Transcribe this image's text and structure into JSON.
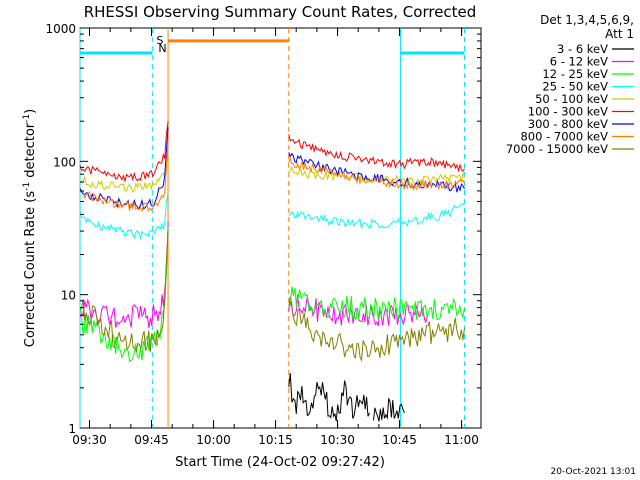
{
  "chart_data": {
    "type": "line",
    "title": "RHESSI Observing Summary Count Rates, Corrected",
    "xlabel": "Start Time (24-Oct-02 09:27:42)",
    "ylabel_main": "Corrected Count Rate (s",
    "ylabel_sup1": "-1",
    "ylabel_mid": " detector",
    "ylabel_sup2": "-1",
    "ylabel_end": ")",
    "x_start": "09:27:42",
    "xlim_minutes": [
      0,
      97
    ],
    "ylim": [
      1,
      1000
    ],
    "yscale": "log",
    "x_ticks": [
      "09:30",
      "09:45",
      "10:00",
      "10:15",
      "10:30",
      "10:45",
      "11:00"
    ],
    "y_ticks": [
      "1",
      "10",
      "100",
      "1000"
    ],
    "legend_header": [
      "Det 1,3,4,5,6,9,",
      "Att 1"
    ],
    "timestamp": "20-Oct-2021 13:01",
    "series": [
      {
        "name": "3 - 6 keV",
        "color": "#000000",
        "segments": [
          {
            "x": [
              50.5,
              52,
              54,
              56,
              58,
              60,
              62,
              64,
              66,
              68,
              70
            ],
            "y": [
              2.5,
              1.4,
              1.8,
              1.3,
              2.2,
              1.5,
              1.3,
              1.9,
              1.4,
              1.6,
              1.3
            ]
          },
          {
            "x": [
              71,
              73,
              75,
              77,
              78.5
            ],
            "y": [
              1.3,
              1.2,
              1.4,
              1.3,
              1.3
            ]
          }
        ]
      },
      {
        "name": "6 - 12 keV",
        "color": "#ff00ff",
        "segments": [
          {
            "x": [
              0,
              3,
              6,
              9,
              12,
              15,
              17,
              18.5,
              20.5,
              21.3
            ],
            "y": [
              7.5,
              7.8,
              7.2,
              6.5,
              6.8,
              7.2,
              6.8,
              7.5,
              9,
              35
            ]
          },
          {
            "x": [
              50.5,
              53,
              56,
              60,
              65,
              70,
              75,
              80,
              82,
              84
            ],
            "y": [
              8.5,
              8.2,
              7.8,
              7.5,
              7.0,
              7.2,
              6.8,
              7.0,
              7.0,
              6.8
            ]
          }
        ]
      },
      {
        "name": "12 - 25 keV",
        "color": "#00ff00",
        "segments": [
          {
            "x": [
              0,
              2,
              4,
              6,
              9,
              12,
              15,
              17,
              19,
              20.5,
              21.3
            ],
            "y": [
              6.5,
              6,
              5.2,
              4.5,
              4,
              3.5,
              3.8,
              4.2,
              5.2,
              7,
              32
            ]
          },
          {
            "x": [
              50.5,
              52,
              55,
              58,
              62,
              66,
              70,
              75,
              80,
              85,
              90,
              93
            ],
            "y": [
              10,
              9.5,
              8.8,
              8.5,
              8.2,
              8.0,
              8.0,
              7.8,
              7.8,
              7.5,
              7.8,
              8.0
            ]
          }
        ]
      },
      {
        "name": "25 - 50 keV",
        "color": "#00ffff",
        "segments": [
          {
            "x": [
              0,
              3,
              6,
              9,
              12,
              15,
              18,
              20.5,
              21.3
            ],
            "y": [
              40,
              35,
              32,
              30,
              29,
              28.5,
              30,
              34,
              60
            ]
          },
          {
            "x": [
              50.5,
              53,
              57,
              62,
              67,
              72,
              77,
              81,
              85,
              88,
              91,
              93
            ],
            "y": [
              38,
              40,
              37,
              35,
              34,
              34,
              35,
              36,
              38,
              40,
              44,
              46
            ]
          }
        ]
      },
      {
        "name": "50 - 100 keV",
        "color": "#cccc00",
        "segments": [
          {
            "x": [
              0,
              3,
              6,
              9,
              12,
              15,
              18,
              20.5,
              21.3
            ],
            "y": [
              72,
              68,
              66,
              64,
              63,
              63,
              65,
              80,
              120
            ]
          },
          {
            "x": [
              50.5,
              53,
              57,
              62,
              67,
              72,
              77,
              81,
              85,
              89,
              93
            ],
            "y": [
              85,
              82,
              80,
              78,
              76,
              74,
              72,
              71,
              72,
              75,
              76
            ]
          }
        ]
      },
      {
        "name": "100 - 300 keV",
        "color": "#ff0000",
        "segments": [
          {
            "x": [
              0,
              3,
              6,
              9,
              12,
              15,
              18,
              20.5,
              21.3
            ],
            "y": [
              92,
              85,
              80,
              77,
              76,
              77,
              82,
              110,
              200
            ]
          },
          {
            "x": [
              50.5,
              53,
              57,
              62,
              67,
              72,
              77,
              81,
              85,
              89,
              93
            ],
            "y": [
              148,
              135,
              125,
              112,
              104,
              98,
              95,
              98,
              100,
              95,
              88
            ]
          }
        ]
      },
      {
        "name": "300 - 800 keV",
        "color": "#0000ff",
        "segments": [
          {
            "x": [
              0,
              3,
              6,
              9,
              12,
              15,
              18,
              20.5,
              21.3
            ],
            "y": [
              60,
              55,
              52,
              49,
              48,
              47,
              50,
              75,
              180
            ]
          },
          {
            "x": [
              50.5,
              53,
              57,
              62,
              67,
              72,
              77,
              81,
              85,
              89,
              93
            ],
            "y": [
              110,
              102,
              93,
              85,
              78,
              74,
              70,
              68,
              67,
              65,
              62
            ]
          }
        ]
      },
      {
        "name": "800 - 7000 keV",
        "color": "#ff8000",
        "segments": [
          {
            "x": [
              0,
              3,
              6,
              9,
              12,
              15,
              18,
              20.5,
              21.3
            ],
            "y": [
              58,
              54,
              50,
              48,
              46,
              45,
              46,
              60,
              150
            ]
          },
          {
            "x": [
              50.5,
              53,
              57,
              62,
              67,
              72,
              77,
              81,
              85,
              89,
              93
            ],
            "y": [
              100,
              95,
              88,
              80,
              74,
              70,
              67,
              66,
              66,
              67,
              68
            ]
          }
        ]
      },
      {
        "name": "7000 - 15000 keV",
        "color": "#808000",
        "segments": [
          {
            "x": [
              0,
              3,
              5,
              8,
              11,
              14,
              17,
              19,
              20.5,
              21.3
            ],
            "y": [
              8,
              7,
              6,
              5,
              4.5,
              4.3,
              4.5,
              5,
              8,
              30
            ]
          },
          {
            "x": [
              50.5,
              52,
              55,
              58,
              61,
              64,
              67,
              70,
              74,
              78,
              82,
              86,
              90,
              93
            ],
            "y": [
              9,
              7,
              6,
              5,
              4.5,
              4,
              3.7,
              3.8,
              4.2,
              4.5,
              5,
              5.2,
              5.5,
              5.6
            ]
          }
        ]
      }
    ],
    "annotations": {
      "S_label": "S",
      "N_label": "N",
      "saa_bars": [
        {
          "x": [
            0,
            17.5
          ],
          "y": 650
        },
        {
          "x": [
            77.5,
            93
          ],
          "y": 650
        }
      ],
      "flare_bar": {
        "x": [
          21.3,
          50.5
        ],
        "y": 800
      },
      "cyan_lines": [
        0,
        17.5,
        77.5,
        93
      ],
      "orange_lines": [
        21.3,
        50.5
      ]
    }
  }
}
